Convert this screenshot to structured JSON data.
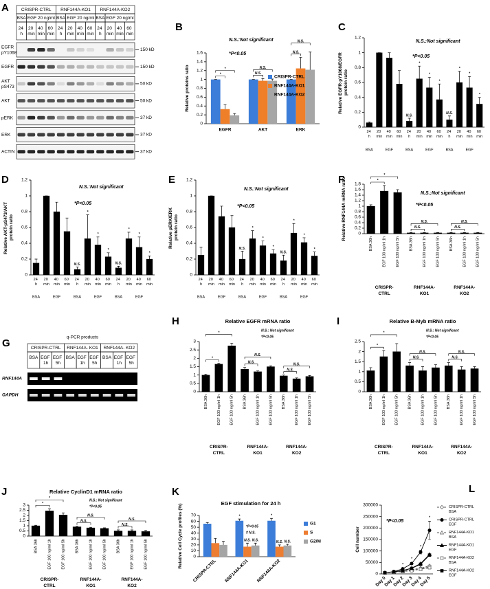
{
  "blot_a": {
    "panel": "A",
    "groups": [
      "CRISPR-CTRL",
      "RNF144A-KO1",
      "RNF144A-KO2"
    ],
    "conditions": [
      "BSA",
      "EGF 20 ng/ml"
    ],
    "times": [
      "24 h",
      "20 min",
      "40 min",
      "60 min"
    ],
    "rows": [
      {
        "label": "EGFR pY1068",
        "size": "150 kD"
      },
      {
        "label": "EGFR",
        "size": "150 kD"
      },
      {
        "label": "AKT pS473",
        "size": "50 kD"
      },
      {
        "label": "AKT",
        "size": "50 kD"
      },
      {
        "label": "pERK",
        "size": "37 kD"
      },
      {
        "label": "ERK",
        "size": "37 kD"
      },
      {
        "label": "ACTIN",
        "size": "37 kD"
      }
    ]
  },
  "gel_g": {
    "panel": "G",
    "title": "q-PCR products",
    "groups": [
      "CRISPR-CTRL",
      "RNF144A- KO1",
      "RNF144A- KO2"
    ],
    "lanes": [
      "BSA",
      "EGF 1h",
      "EGF 5h"
    ],
    "rows": [
      "RNF144A",
      "GAPDH"
    ]
  },
  "chart_data": [
    {
      "type": "bar",
      "panel": "B",
      "ylabel": "Relative proteins ratio",
      "categories": [
        "EGFR",
        "AKT",
        "ERK"
      ],
      "series": [
        {
          "name": "CRISPR-CTRL",
          "color": "#3b7dd8",
          "values": [
            1,
            1,
            1
          ],
          "errors": [
            0,
            0,
            0
          ]
        },
        {
          "name": "RNF144A-KO1",
          "color": "#f07f2a",
          "values": [
            0.33,
            0.97,
            1.25
          ],
          "errors": [
            0.1,
            0.05,
            0.25
          ]
        },
        {
          "name": "RNF144A-KO2",
          "color": "#a6a6a6",
          "values": [
            0.19,
            0.97,
            1.22
          ],
          "errors": [
            0.04,
            0.04,
            0.4
          ]
        }
      ],
      "ylim": [
        0,
        1.6
      ],
      "yticks": [
        0,
        0.2,
        0.4,
        0.6,
        0.8,
        1,
        1.2,
        1.4,
        1.6
      ],
      "annotations": [
        "N.S.:Not significant",
        "*P<0.05"
      ],
      "bracket_labels": [
        "*",
        "*",
        "N.S.",
        "N.S.",
        "N.S.",
        "N.S."
      ]
    },
    {
      "type": "bar",
      "panel": "C",
      "ylabel": "Relative EGFR-pY1068/EGFR protein ratio",
      "categories": [
        "24 h",
        "20 min",
        "40 min",
        "60 min",
        "24 h",
        "20 min",
        "40 min",
        "60 min",
        "24 h",
        "20 min",
        "40 min",
        "60 min"
      ],
      "groups": [
        "BSA",
        "EGF",
        "BSA",
        "EGF",
        "BSA",
        "EGF"
      ],
      "values": [
        0.06,
        1,
        0.93,
        0.58,
        0.08,
        0.65,
        0.53,
        0.37,
        0.1,
        0.6,
        0.53,
        0.31
      ],
      "errors": [
        0.01,
        0,
        0.07,
        0.18,
        0.04,
        0.17,
        0.14,
        0.21,
        0.05,
        0.15,
        0.15,
        0.09
      ],
      "color": "#000000",
      "ylim": [
        0,
        1.2
      ],
      "yticks": [
        0,
        0.2,
        0.4,
        0.6,
        0.8,
        1,
        1.2
      ],
      "annotations": [
        "N.S.:Not significant",
        "*P<0.05"
      ],
      "bar_labels": [
        null,
        null,
        null,
        null,
        "N.S.",
        "*",
        "*",
        "*",
        "N.S.",
        "*",
        "*",
        "*"
      ]
    },
    {
      "type": "bar",
      "panel": "D",
      "ylabel": "Relative AKT-pS473/AKT protein ratio",
      "categories": [
        "24 h",
        "20 min",
        "40 min",
        "60 min",
        "24 h",
        "20 min",
        "40 min",
        "60 min",
        "24 h",
        "20 min",
        "40 min",
        "60 min"
      ],
      "groups": [
        "BSA",
        "EGF",
        "BSA",
        "EGF",
        "BSA",
        "EGF"
      ],
      "values": [
        0.15,
        1,
        0.8,
        0.55,
        0.07,
        0.46,
        0.38,
        0.23,
        0.09,
        0.46,
        0.35,
        0.2
      ],
      "errors": [
        0.05,
        0,
        0.12,
        0.17,
        0.03,
        0.3,
        0.1,
        0.05,
        0.02,
        0.08,
        0.13,
        0.04
      ],
      "color": "#000000",
      "ylim": [
        0,
        1.2
      ],
      "yticks": [
        0,
        0.2,
        0.4,
        0.6,
        0.8,
        1,
        1.2
      ],
      "annotations": [
        "N.S.:Not significant",
        "*P<0.05"
      ],
      "bar_labels": [
        null,
        null,
        null,
        null,
        "N.S.",
        "*",
        "*",
        "*",
        "N.S.",
        "*",
        "*",
        "*"
      ]
    },
    {
      "type": "bar",
      "panel": "E",
      "ylabel": "Relative pERK/ERK protein ratio",
      "categories": [
        "24 h",
        "20 min",
        "40 min",
        "60 min",
        "24 h",
        "20 min",
        "40 min",
        "60 min",
        "24 h",
        "20 min",
        "40 min",
        "60 min"
      ],
      "groups": [
        "BSA",
        "EGF",
        "BSA",
        "EGF",
        "BSA",
        "EGF"
      ],
      "values": [
        0.25,
        1,
        0.74,
        0.6,
        0.2,
        0.46,
        0.37,
        0.27,
        0.18,
        0.53,
        0.41,
        0.24
      ],
      "errors": [
        0.1,
        0,
        0.13,
        0.15,
        0.1,
        0.1,
        0.06,
        0.05,
        0.07,
        0.12,
        0.06,
        0.05
      ],
      "color": "#000000",
      "ylim": [
        0,
        1.2
      ],
      "yticks": [
        0,
        0.2,
        0.4,
        0.6,
        0.8,
        1,
        1.2
      ],
      "annotations": [
        "N.S.:Not significant",
        "*P<0.05"
      ],
      "bar_labels": [
        null,
        null,
        null,
        null,
        "N.S.",
        "*",
        "*",
        "*",
        "N.S.",
        "*",
        "*",
        "*"
      ]
    },
    {
      "type": "bar",
      "panel": "F",
      "ylabel": "Relative RNF144A mRNA ratio",
      "categories": [
        "BSA 36h",
        "EGF 100 ng/ml 1h",
        "EGF 100 ng/ml 5h",
        "BSA 36h",
        "EGF 100 ng/ml 1h",
        "EGF 100 ng/ml 5h",
        "BSA 36h",
        "EGF 100 ng/ml 1h",
        "EGF 100 ng/ml 5h"
      ],
      "groups": [
        "CRISPR-CTRL",
        "RNF144A-KO1",
        "RNF144A-KO2"
      ],
      "values": [
        1,
        1.55,
        1.5,
        0.03,
        0.03,
        0.03,
        0.03,
        0.03,
        0.03
      ],
      "errors": [
        0.05,
        0.2,
        0.1,
        0.01,
        0.01,
        0.01,
        0.01,
        0.01,
        0.01
      ],
      "color": "#000000",
      "ylim": [
        0,
        1.8
      ],
      "yticks": [
        0,
        0.2,
        0.4,
        0.6,
        0.8,
        1,
        1.2,
        1.4,
        1.6,
        1.8
      ],
      "annotations": [
        "N.S.:Not significant",
        "*P<0.05"
      ],
      "bracket_labels": [
        "*",
        "*",
        "N.S.",
        "N.S.",
        "N.S.",
        "N.S."
      ]
    },
    {
      "type": "bar",
      "panel": "H",
      "title": "Relative EGFR mRNA ratio",
      "categories": [
        "BSA 36h",
        "EGF 100 ng/ml 1h",
        "EGF 100 ng/ml 5h",
        "BSA 36h",
        "EGF 100 ng/ml 1h",
        "EGF 100 ng/ml 5h",
        "BSA 36h",
        "EGF 100 ng/ml 1h",
        "EGF 100 ng/ml 5h"
      ],
      "groups": [
        "CRISPR-CTRL",
        "RNF144A-KO1",
        "RNF144A-KO2"
      ],
      "values": [
        1,
        1.65,
        2.75,
        1.35,
        1.2,
        1.5,
        0.95,
        0.78,
        0.92
      ],
      "errors": [
        0.05,
        0.05,
        0.15,
        0.1,
        0.05,
        0.05,
        0.05,
        0.05,
        0.05
      ],
      "color": "#000000",
      "ylim": [
        0,
        3
      ],
      "yticks": [
        0,
        0.5,
        1,
        1.5,
        2,
        2.5,
        3
      ],
      "annotations": [
        "N.S.: Not significant",
        "*P<0.05"
      ],
      "bracket_labels": [
        "*",
        "*",
        "N.S.",
        "N.S.",
        "N.S.",
        "N.S."
      ]
    },
    {
      "type": "bar",
      "panel": "I",
      "title": "Relative B-Myb mRNA ratio",
      "categories": [
        "BSA 36h",
        "EGF 100 ng/ml 1h",
        "EGF 100 ng/ml 5h",
        "BSA 36h",
        "EGF 100 ng/ml 1h",
        "EGF 100 ng/ml 5h",
        "BSA 36h",
        "EGF 100 ng/ml 1h",
        "EGF 100 ng/ml 5h"
      ],
      "groups": [
        "CRISPR-CTRL",
        "RNF144A-KO1",
        "RNF144A-KO2"
      ],
      "values": [
        1.05,
        1.75,
        2,
        1.3,
        1.05,
        1.2,
        1.3,
        1.1,
        1.15
      ],
      "errors": [
        0.15,
        0.3,
        0.4,
        0.15,
        0.2,
        0.15,
        0.15,
        0.15,
        0.1
      ],
      "color": "#000000",
      "ylim": [
        0,
        2.5
      ],
      "yticks": [
        0,
        0.5,
        1,
        1.5,
        2,
        2.5
      ],
      "annotations": [
        "N.S.: Not significant",
        "*P<0.05"
      ],
      "bracket_labels": [
        "*",
        "*",
        "N.S.",
        "N.S.",
        "N.S.",
        "N.S."
      ]
    },
    {
      "type": "bar",
      "panel": "J",
      "title": "Relative CyclinD1 mRNA ratio",
      "categories": [
        "BSA 36h",
        "EGF 100 ng/ml 1h",
        "EGF 100 ng/ml 5h",
        "BSA 36h",
        "EGF 100 ng/ml 1h",
        "EGF 100 ng/ml 5h",
        "BSA 36h",
        "EGF 100 ng/ml 1h",
        "EGF 100 ng/ml 5h"
      ],
      "groups": [
        "CRISPR-CTRL",
        "RNF144A-KO1",
        "RNF144A-KO2"
      ],
      "values": [
        1,
        2.45,
        2.05,
        0.9,
        0.8,
        0.75,
        0.5,
        0.5,
        0.45
      ],
      "errors": [
        0.05,
        0.2,
        0.2,
        0.05,
        0.05,
        0.05,
        0.1,
        0.1,
        0.1
      ],
      "color": "#000000",
      "ylim": [
        0,
        3
      ],
      "yticks": [
        0,
        0.5,
        1,
        1.5,
        2,
        2.5,
        3
      ],
      "annotations": [
        "N.S.: Not significant",
        "*P<0.05"
      ],
      "bracket_labels": [
        "*",
        "*",
        "N.S.",
        "N.S.",
        "N.S.",
        "N.S."
      ]
    },
    {
      "type": "bar",
      "panel": "K",
      "title": "EGF stimulation for 24 h",
      "ylabel": "Relative Cell Cycle profiles (%)",
      "categories": [
        "CRISPR-CTRL",
        "RNF144A-KO1",
        "RNF144A-KO2"
      ],
      "series": [
        {
          "name": "G1",
          "color": "#3b7dd8",
          "values": [
            56,
            61,
            61
          ],
          "errors": [
            2,
            3,
            4
          ]
        },
        {
          "name": "S",
          "color": "#ed7d31",
          "values": [
            23,
            17,
            17
          ],
          "errors": [
            8,
            6,
            3
          ]
        },
        {
          "name": "G2/M",
          "color": "#a5a5a5",
          "values": [
            20,
            19,
            19
          ],
          "errors": [
            6,
            4,
            2
          ]
        }
      ],
      "ylim": [
        0,
        70
      ],
      "yticks": [
        0,
        10,
        20,
        30,
        40,
        50,
        60,
        70
      ],
      "annotations": [
        "*P<0.05",
        "# N.S."
      ],
      "bar_labels": [
        null,
        null,
        null,
        "*",
        "N.S.",
        "N.S.",
        "*",
        "N.S.",
        "N.S."
      ]
    },
    {
      "type": "line",
      "panel": "L",
      "ylabel": "Cell number",
      "categories": [
        "Day 0",
        "Day 1",
        "Day 2",
        "Day 3",
        "Day 4",
        "Day 5"
      ],
      "series": [
        {
          "name": "CRISPR-CTRL BSA",
          "color": "#555555",
          "style": "dashed",
          "marker": "diamond",
          "filled": false,
          "values": [
            5000,
            8000,
            12000,
            18000,
            25000,
            35000
          ]
        },
        {
          "name": "CRISPR-CTRL EGF",
          "color": "#000000",
          "style": "solid",
          "marker": "circle",
          "filled": true,
          "values": [
            5000,
            10000,
            22000,
            45000,
            95000,
            190000
          ],
          "errors": [
            0,
            1000,
            3000,
            5000,
            8000,
            40000
          ],
          "point_labels": [
            null,
            null,
            "*",
            "*",
            "*",
            "*"
          ]
        },
        {
          "name": "RNF144A-KO1 BSA",
          "color": "#555555",
          "style": "dashed",
          "marker": "triangle",
          "filled": false,
          "values": [
            5000,
            8000,
            11000,
            16000,
            22000,
            30000
          ]
        },
        {
          "name": "RNF144A-KO1 EGF",
          "color": "#000000",
          "style": "solid",
          "marker": "triangle",
          "filled": true,
          "values": [
            5000,
            9000,
            15000,
            25000,
            45000,
            85000
          ]
        },
        {
          "name": "RNF144A-KO2 BSA",
          "color": "#555555",
          "style": "dashed",
          "marker": "square",
          "filled": false,
          "values": [
            5000,
            7000,
            10000,
            14000,
            20000,
            27000
          ]
        },
        {
          "name": "RNF144A-KO2 EGF",
          "color": "#000000",
          "style": "solid",
          "marker": "square",
          "filled": true,
          "values": [
            5000,
            9000,
            14000,
            24000,
            42000,
            82000
          ]
        }
      ],
      "ylim": [
        0,
        300000
      ],
      "yticks": [
        0,
        50000,
        100000,
        150000,
        200000,
        250000,
        300000
      ],
      "annotations": [
        "*P<0.05"
      ]
    }
  ]
}
